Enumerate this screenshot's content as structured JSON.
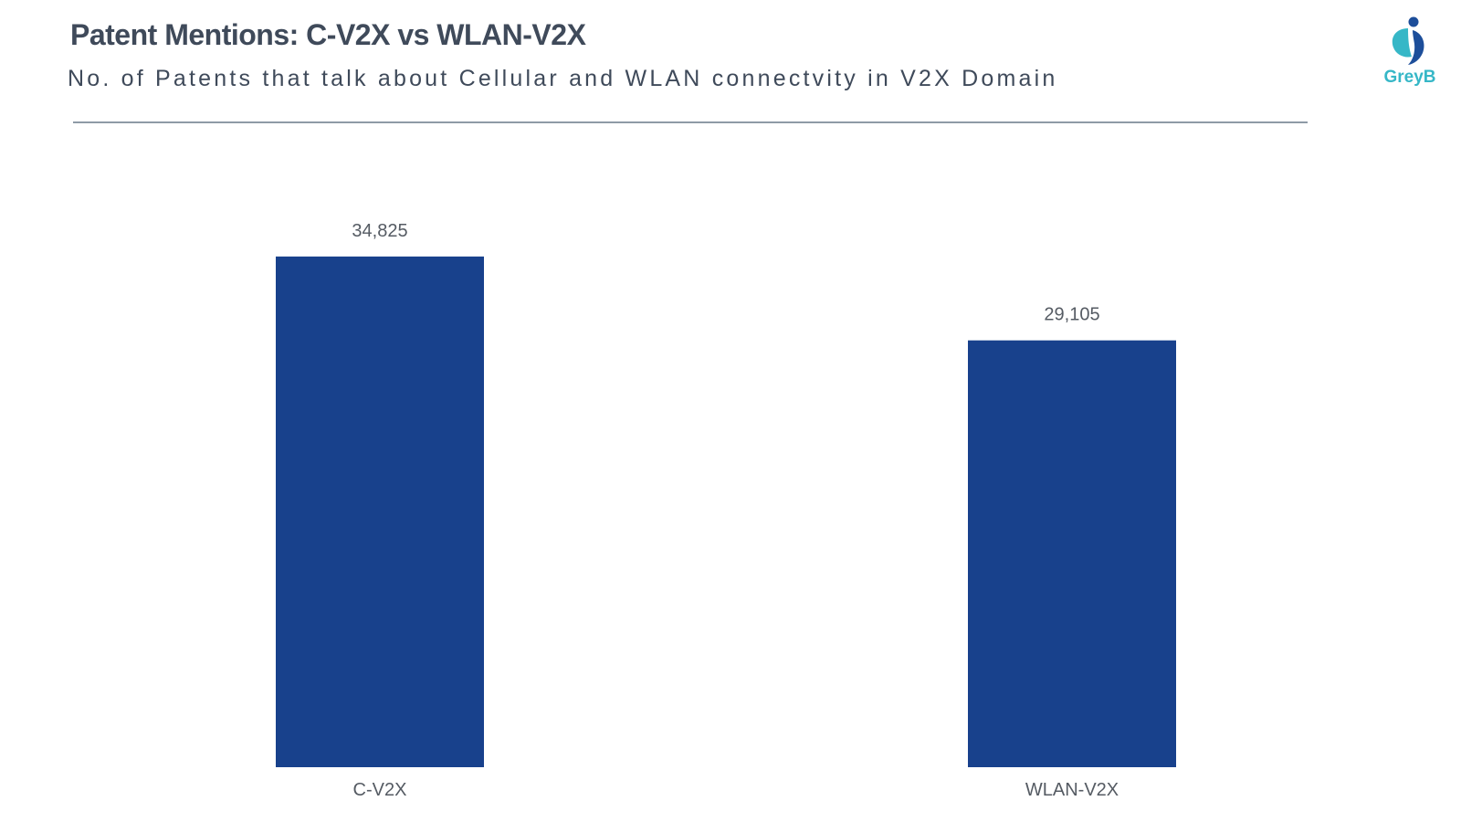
{
  "header": {
    "title": "Patent Mentions: C-V2X vs WLAN-V2X",
    "subtitle": "No. of Patents that talk about Cellular and WLAN connectvity in V2X Domain"
  },
  "brand": {
    "logo_text": "GreyB",
    "logo_icon": "greyb-logo-icon",
    "logo_color": "#36b7c7",
    "logo_dark_color": "#1d4e9a"
  },
  "colors": {
    "bar": "#18418c",
    "text": "#3f4a5a",
    "label": "#555b63",
    "rule": "#8e9aa6"
  },
  "chart_data": {
    "type": "bar",
    "title": "Patent Mentions: C-V2X vs WLAN-V2X",
    "subtitle": "No. of Patents that talk about Cellular and WLAN connectvity in V2X Domain",
    "categories": [
      "C-V2X",
      "WLAN-V2X"
    ],
    "values": [
      34825,
      29105
    ],
    "value_labels": [
      "34,825",
      "29,105"
    ],
    "xlabel": "",
    "ylabel": "",
    "ylim": [
      0,
      35500
    ],
    "grid": false,
    "legend": "none"
  }
}
